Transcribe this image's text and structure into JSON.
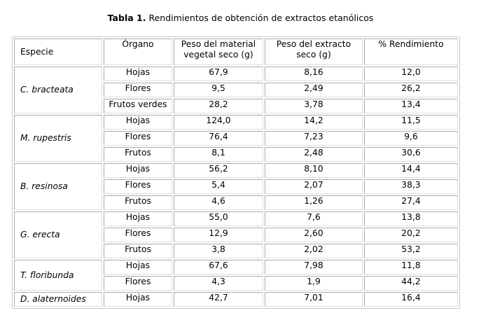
{
  "caption": {
    "label": "Tabla 1.",
    "text": "Rendimientos de obtención de extractos etanólicos"
  },
  "headers": [
    "Especie",
    "Órgano",
    "Peso del material vegetal seco (g)",
    "Peso del extracto seco (g)",
    "% Rendimiento"
  ],
  "groups": [
    {
      "species": "C. bracteata",
      "rows": [
        [
          "Hojas",
          "67,9",
          "8,16",
          "12,0"
        ],
        [
          "Flores",
          "9,5",
          "2,49",
          "26,2"
        ],
        [
          "Frutos verdes",
          "28,2",
          "3,78",
          "13,4"
        ]
      ]
    },
    {
      "species": "M. rupestris",
      "rows": [
        [
          "Hojas",
          "124,0",
          "14,2",
          "11,5"
        ],
        [
          "Flores",
          "76,4",
          "7,23",
          "9,6"
        ],
        [
          "Frutos",
          "8,1",
          "2,48",
          "30,6"
        ]
      ]
    },
    {
      "species": "B. resinosa",
      "rows": [
        [
          "Hojas",
          "56,2",
          "8,10",
          "14,4"
        ],
        [
          "Flores",
          "5,4",
          "2,07",
          "38,3"
        ],
        [
          "Frutos",
          "4,6",
          "1,26",
          "27,4"
        ]
      ]
    },
    {
      "species": "G. erecta",
      "rows": [
        [
          "Hojas",
          "55,0",
          "7,6",
          "13,8"
        ],
        [
          "Flores",
          "12,9",
          "2,60",
          "20,2"
        ],
        [
          "Frutos",
          "3,8",
          "2,02",
          "53,2"
        ]
      ]
    },
    {
      "species": "T. floribunda",
      "rows": [
        [
          "Hojas",
          "67,6",
          "7,98",
          "11,8"
        ],
        [
          "Flores",
          "4,3",
          "1,9",
          "44,2"
        ]
      ]
    },
    {
      "species": "D. alaternoides",
      "rows": [
        [
          "Hojas",
          "42,7",
          "7,01",
          "16,4"
        ]
      ]
    }
  ]
}
